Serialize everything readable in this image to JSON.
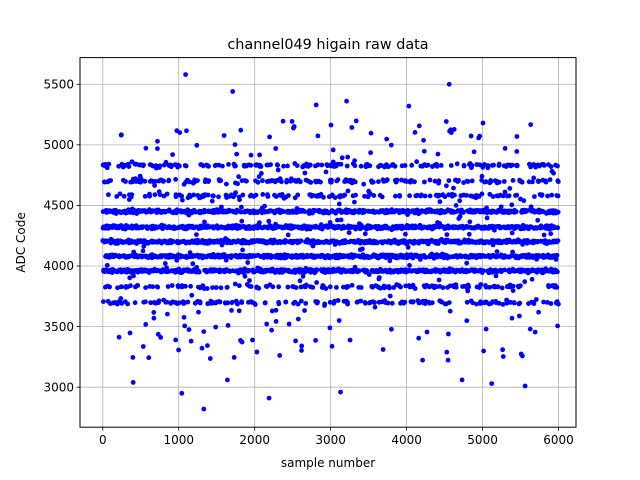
{
  "chart_data": {
    "type": "scatter",
    "title": "channel049 higain raw data",
    "xlabel": "sample number",
    "ylabel": "ADC Code",
    "xlim": [
      -300,
      6230
    ],
    "ylim": [
      2670,
      5720
    ],
    "xticks": [
      0,
      1000,
      2000,
      3000,
      4000,
      5000,
      6000
    ],
    "yticks": [
      3000,
      3500,
      4000,
      4500,
      5000,
      5500
    ],
    "grid": true,
    "marker_color": "#0000ff",
    "n_samples": 6000,
    "dense_bands": [
      3960,
      4080,
      4200,
      4320,
      4450
    ],
    "secondary_bands": [
      3700,
      3830,
      4580,
      4700,
      4830
    ],
    "outliers": [
      {
        "x": 1090,
        "y": 5580
      },
      {
        "x": 4560,
        "y": 5500
      },
      {
        "x": 1710,
        "y": 5440
      },
      {
        "x": 3210,
        "y": 5360
      },
      {
        "x": 4030,
        "y": 5320
      },
      {
        "x": 2810,
        "y": 5330
      },
      {
        "x": 1040,
        "y": 2950
      },
      {
        "x": 1330,
        "y": 2820
      },
      {
        "x": 2190,
        "y": 2910
      },
      {
        "x": 3130,
        "y": 2960
      },
      {
        "x": 5560,
        "y": 3010
      },
      {
        "x": 400,
        "y": 3040
      },
      {
        "x": 5120,
        "y": 3030
      },
      {
        "x": 4730,
        "y": 3060
      },
      {
        "x": 1640,
        "y": 3060
      }
    ]
  }
}
